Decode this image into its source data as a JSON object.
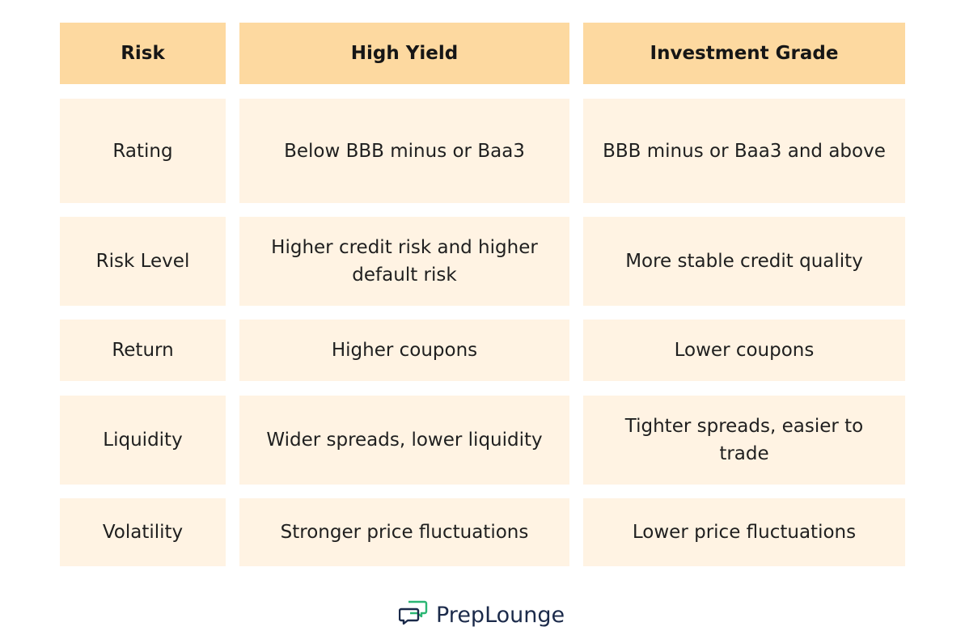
{
  "table": {
    "headers": [
      "Risk",
      "High Yield",
      "Investment Grade"
    ],
    "rows": [
      [
        "Rating",
        "Below BBB minus or Baa3",
        "BBB minus or Baa3 and above"
      ],
      [
        "Risk Level",
        "Higher credit risk and higher default risk",
        "More stable credit quality"
      ],
      [
        "Return",
        "Higher coupons",
        "Lower coupons"
      ],
      [
        "Liquidity",
        "Wider spreads, lower liquidity",
        "Tighter spreads, easier to trade"
      ],
      [
        "Volatility",
        "Stronger price fluctuations",
        "Lower price fluctuations"
      ]
    ]
  },
  "logo": {
    "text": "PrepLounge",
    "icon": "chat-bubbles-icon",
    "colors": {
      "green": "#2bb673",
      "navy": "#1b2a4a"
    }
  },
  "colors": {
    "header_bg": "#fdd9a0",
    "cell_bg": "#fff3e3"
  }
}
